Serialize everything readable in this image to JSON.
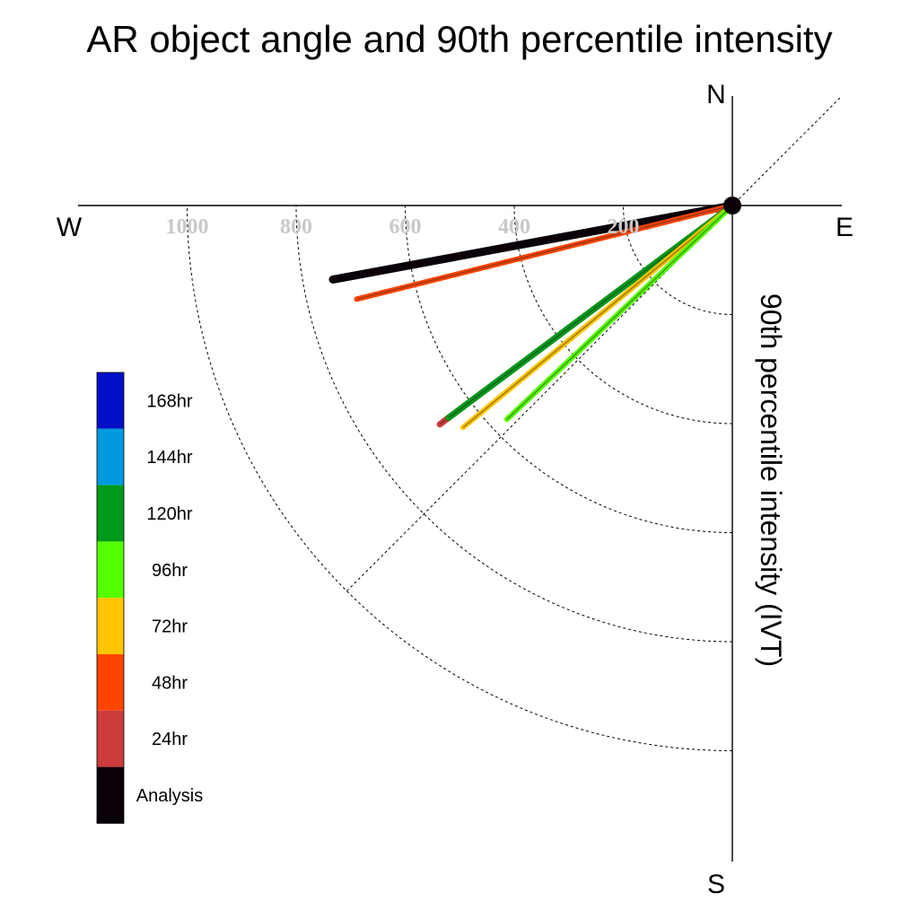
{
  "chart_data": {
    "type": "polar-quadrant",
    "title": "AR object angle and 90th percentile intensity",
    "ylabel": "90th percentile intensity (IVT)",
    "compass": {
      "north": "N",
      "south": "S",
      "east": "E",
      "west": "W"
    },
    "radial_ticks": [
      200,
      400,
      600,
      800,
      1000
    ],
    "radial_max": 1000,
    "series": [
      {
        "name": "Analysis",
        "angle_deg_below_west": 10.5,
        "intensity": 745,
        "color": "#0a0008"
      },
      {
        "name": "48hr",
        "angle_deg_below_west": 14.0,
        "intensity": 710,
        "color": "#ff4400"
      },
      {
        "name": "24hr",
        "angle_deg_below_west": 36.8,
        "intensity": 670,
        "color": "#cc3c3c"
      },
      {
        "name": "120hr",
        "angle_deg_below_west": 36.8,
        "intensity": 650,
        "color": "#009a1a"
      },
      {
        "name": "72hr",
        "angle_deg_below_west": 39.5,
        "intensity": 640,
        "color": "#ffc400"
      },
      {
        "name": "96hr",
        "angle_deg_below_west": 43.5,
        "intensity": 570,
        "color": "#55ff00"
      }
    ],
    "legend": [
      {
        "label": "168hr",
        "color": "#0010c8"
      },
      {
        "label": "144hr",
        "color": "#009ade"
      },
      {
        "label": "120hr",
        "color": "#009a1a"
      },
      {
        "label": "96hr",
        "color": "#55ff00"
      },
      {
        "label": "72hr",
        "color": "#ffc400"
      },
      {
        "label": "48hr",
        "color": "#ff4400"
      },
      {
        "label": "24hr",
        "color": "#cc3c3c"
      },
      {
        "label": "Analysis",
        "color": "#0a0008"
      }
    ]
  }
}
